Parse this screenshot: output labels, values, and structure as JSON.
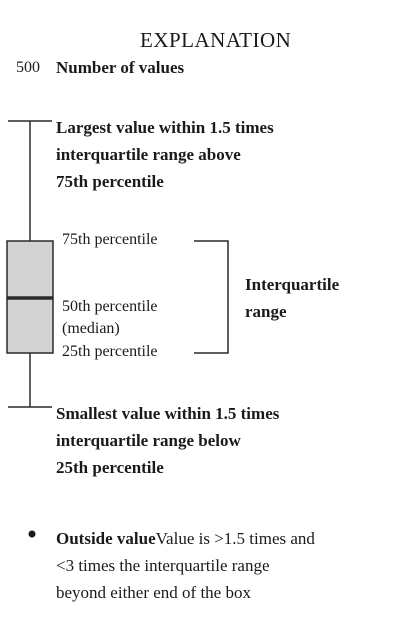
{
  "explanation": {
    "title": "EXPLANATION",
    "count_value": "500",
    "count_label": "Number of values",
    "upper_whisker_lines": [
      "Largest value within 1.5 times",
      "interquartile range above",
      "75th percentile"
    ],
    "p75_label": "75th percentile",
    "median_lines": [
      "50th percentile",
      "(median)"
    ],
    "p25_label": "25th percentile",
    "iqr_lines": [
      "Interquartile",
      "range"
    ],
    "lower_whisker_lines": [
      "Smallest value within 1.5 times",
      "interquartile range below",
      "25th percentile"
    ],
    "outside_title": "Outside value",
    "outside_desc_lines": [
      "Value is >1.5 times and",
      "<3 times the interquartile range",
      "beyond either end of the box"
    ]
  },
  "colors": {
    "box_fill": "#d3d3d3",
    "stroke": "#2a2a2a",
    "median_line": "#2a2a2a"
  }
}
